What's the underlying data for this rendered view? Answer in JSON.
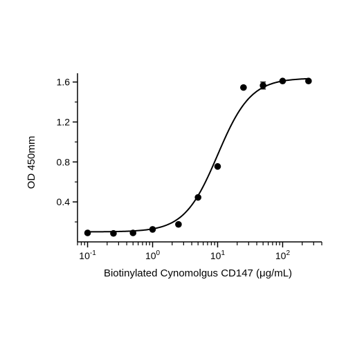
{
  "chart_data": {
    "type": "scatter",
    "title": "",
    "xlabel": "Biotinylated Cynomolgus CD147 (μg/mL)",
    "ylabel": "OD 450mm",
    "xscale": "log10",
    "xlim": [
      0.07,
      400
    ],
    "ylim": [
      0.0,
      1.66
    ],
    "x_ticks": [
      {
        "value": 0.1,
        "base": "10",
        "exp": "-1"
      },
      {
        "value": 1,
        "base": "10",
        "exp": "0"
      },
      {
        "value": 10,
        "base": "10",
        "exp": "1"
      },
      {
        "value": 100,
        "base": "10",
        "exp": "2"
      }
    ],
    "y_ticks": [
      {
        "value": 0.4,
        "label": "0.4"
      },
      {
        "value": 0.8,
        "label": "0.8"
      },
      {
        "value": 1.2,
        "label": "1.2"
      },
      {
        "value": 1.6,
        "label": "1.6"
      }
    ],
    "grid": false,
    "legend": "none",
    "colors": {
      "marker": "#000000",
      "curve": "#000000",
      "axis": "#000000"
    },
    "series": [
      {
        "x": [
          0.1,
          0.25,
          0.5,
          1,
          2.5,
          5,
          10,
          25,
          50,
          100,
          250
        ],
        "y": [
          0.09,
          0.085,
          0.09,
          0.125,
          0.175,
          0.445,
          0.755,
          1.545,
          1.565,
          1.61,
          1.61
        ],
        "error": [
          0,
          0,
          0,
          0,
          0,
          0,
          0,
          0,
          0.035,
          0,
          0
        ]
      }
    ],
    "fit": {
      "type": "4PL",
      "bottom": 0.1,
      "top": 1.64,
      "ec50": 10,
      "hill": 1.7,
      "x_range": [
        0.1,
        250
      ]
    }
  }
}
